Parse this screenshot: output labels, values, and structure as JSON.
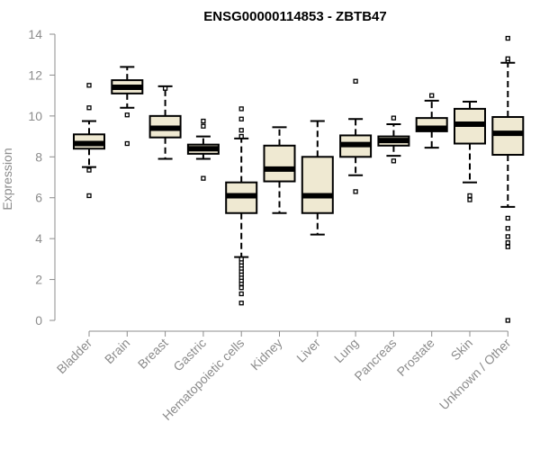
{
  "chart_data": {
    "type": "boxplot",
    "title": "ENSG00000114853 - ZBTB47",
    "xlabel": "",
    "ylabel": "Expression",
    "ylim": [
      0,
      14
    ],
    "yticks": [
      0,
      2,
      4,
      6,
      8,
      10,
      12,
      14
    ],
    "grid": false,
    "box_fill": "#efe9d2",
    "box_stroke": "#000000",
    "categories": [
      "Bladder",
      "Brain",
      "Breast",
      "Gastric",
      "Hematopoietic cells",
      "Kidney",
      "Liver",
      "Lung",
      "Pancreas",
      "Prostate",
      "Skin",
      "Unknown / Other"
    ],
    "boxes": [
      {
        "whisker_low": 7.5,
        "q1": 8.4,
        "median": 8.65,
        "q3": 9.1,
        "whisker_high": 9.75,
        "outliers": [
          6.1,
          7.35,
          10.4,
          11.5
        ]
      },
      {
        "whisker_low": 10.4,
        "q1": 11.1,
        "median": 11.4,
        "q3": 11.75,
        "whisker_high": 12.4,
        "outliers": [
          8.65,
          10.05
        ]
      },
      {
        "whisker_low": 7.9,
        "q1": 8.95,
        "median": 9.4,
        "q3": 10.0,
        "whisker_high": 11.45,
        "outliers": [
          11.35
        ]
      },
      {
        "whisker_low": 7.9,
        "q1": 8.15,
        "median": 8.4,
        "q3": 8.6,
        "whisker_high": 9.0,
        "outliers": [
          6.95,
          9.5,
          9.75
        ]
      },
      {
        "whisker_low": 3.1,
        "q1": 5.25,
        "median": 6.1,
        "q3": 6.75,
        "whisker_high": 8.9,
        "outliers": [
          0.85,
          1.3,
          1.6,
          1.8,
          1.95,
          2.1,
          2.25,
          2.4,
          2.55,
          2.7,
          2.85,
          3.0,
          9.0,
          9.3,
          9.85,
          10.35
        ]
      },
      {
        "whisker_low": 5.25,
        "q1": 6.8,
        "median": 7.4,
        "q3": 8.55,
        "whisker_high": 9.45,
        "outliers": []
      },
      {
        "whisker_low": 4.2,
        "q1": 5.25,
        "median": 6.1,
        "q3": 8.0,
        "whisker_high": 9.75,
        "outliers": []
      },
      {
        "whisker_low": 7.1,
        "q1": 8.0,
        "median": 8.6,
        "q3": 9.05,
        "whisker_high": 9.85,
        "outliers": [
          6.3,
          11.7
        ]
      },
      {
        "whisker_low": 8.05,
        "q1": 8.55,
        "median": 8.8,
        "q3": 9.0,
        "whisker_high": 9.6,
        "outliers": [
          7.8,
          9.9
        ]
      },
      {
        "whisker_low": 8.45,
        "q1": 9.25,
        "median": 9.4,
        "q3": 9.9,
        "whisker_high": 10.75,
        "outliers": [
          11.0
        ]
      },
      {
        "whisker_low": 6.75,
        "q1": 8.65,
        "median": 9.6,
        "q3": 10.35,
        "whisker_high": 10.7,
        "outliers": [
          5.9,
          6.1
        ]
      },
      {
        "whisker_low": 5.55,
        "q1": 8.1,
        "median": 9.15,
        "q3": 9.95,
        "whisker_high": 12.6,
        "outliers": [
          0.0,
          3.6,
          3.8,
          4.1,
          4.5,
          5.0,
          12.7,
          12.8,
          13.8
        ]
      }
    ]
  }
}
